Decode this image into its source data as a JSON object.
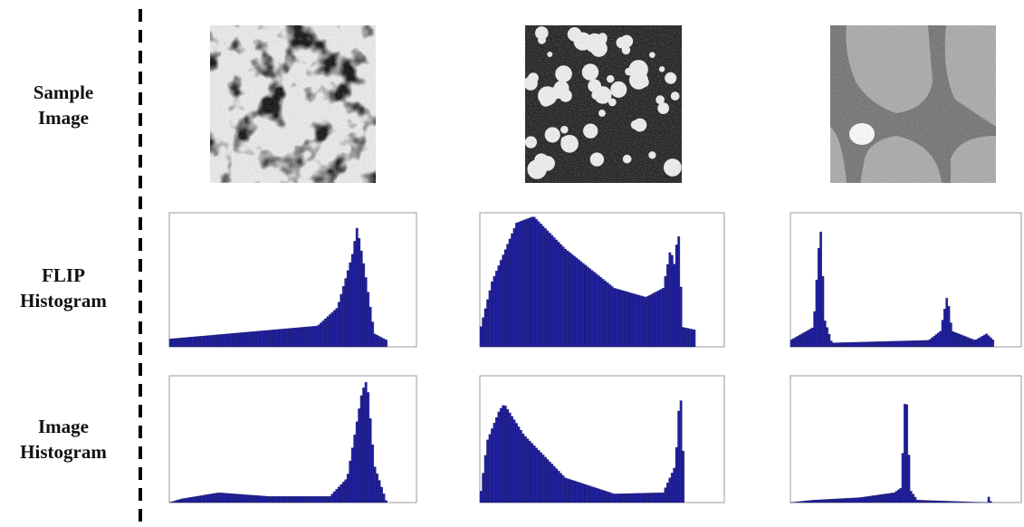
{
  "rows": [
    {
      "label": "Sample Image"
    },
    {
      "label": "FLIP Histogram"
    },
    {
      "label": "Image Histogram"
    }
  ]
}
